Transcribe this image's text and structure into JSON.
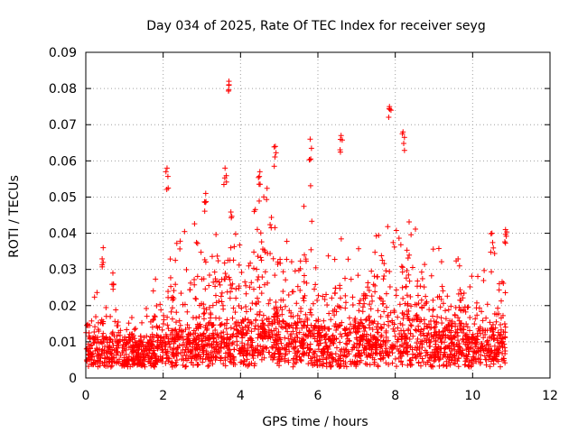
{
  "chart_data": {
    "type": "scatter",
    "title": "Day 034 of 2025, Rate Of TEC Index for receiver seyg",
    "xlabel": "GPS time / hours",
    "ylabel": "ROTI / TECUs",
    "xlim": [
      0,
      12
    ],
    "ylim": [
      0,
      0.09
    ],
    "xticks": [
      "0",
      "2",
      "4",
      "6",
      "8",
      "10",
      "12"
    ],
    "yticks": [
      "0",
      "0.01",
      "0.02",
      "0.03",
      "0.04",
      "0.05",
      "0.06",
      "0.07",
      "0.08",
      "0.09"
    ],
    "grid": true,
    "marker": "+",
    "color": "#ff0000",
    "time_range_hours": [
      0,
      10.85
    ],
    "series": [
      {
        "name": "ROTI",
        "notable_points": [
          {
            "x": 3.7,
            "y": 0.082
          },
          {
            "x": 7.85,
            "y": 0.075
          },
          {
            "x": 8.2,
            "y": 0.068
          },
          {
            "x": 6.6,
            "y": 0.067
          },
          {
            "x": 5.8,
            "y": 0.066
          },
          {
            "x": 4.9,
            "y": 0.064
          },
          {
            "x": 2.1,
            "y": 0.058
          },
          {
            "x": 3.6,
            "y": 0.058
          },
          {
            "x": 4.5,
            "y": 0.057
          },
          {
            "x": 3.1,
            "y": 0.051
          },
          {
            "x": 0.45,
            "y": 0.036
          },
          {
            "x": 0.7,
            "y": 0.029
          },
          {
            "x": 10.85,
            "y": 0.041
          },
          {
            "x": 10.5,
            "y": 0.04
          }
        ],
        "envelope": [
          {
            "x": 0.0,
            "upper": 0.02,
            "base": 0.008
          },
          {
            "x": 0.5,
            "upper": 0.028,
            "base": 0.008
          },
          {
            "x": 1.0,
            "upper": 0.018,
            "base": 0.007
          },
          {
            "x": 1.5,
            "upper": 0.017,
            "base": 0.007
          },
          {
            "x": 2.0,
            "upper": 0.035,
            "base": 0.009
          },
          {
            "x": 2.5,
            "upper": 0.04,
            "base": 0.01
          },
          {
            "x": 3.0,
            "upper": 0.048,
            "base": 0.011
          },
          {
            "x": 3.5,
            "upper": 0.05,
            "base": 0.011
          },
          {
            "x": 4.0,
            "upper": 0.045,
            "base": 0.012
          },
          {
            "x": 4.5,
            "upper": 0.055,
            "base": 0.013
          },
          {
            "x": 5.0,
            "upper": 0.05,
            "base": 0.013
          },
          {
            "x": 5.5,
            "upper": 0.045,
            "base": 0.013
          },
          {
            "x": 5.8,
            "upper": 0.055,
            "base": 0.012
          },
          {
            "x": 6.0,
            "upper": 0.03,
            "base": 0.01
          },
          {
            "x": 6.5,
            "upper": 0.04,
            "base": 0.011
          },
          {
            "x": 7.0,
            "upper": 0.04,
            "base": 0.012
          },
          {
            "x": 7.5,
            "upper": 0.045,
            "base": 0.013
          },
          {
            "x": 8.0,
            "upper": 0.06,
            "base": 0.014
          },
          {
            "x": 8.5,
            "upper": 0.045,
            "base": 0.013
          },
          {
            "x": 9.0,
            "upper": 0.04,
            "base": 0.012
          },
          {
            "x": 9.5,
            "upper": 0.035,
            "base": 0.011
          },
          {
            "x": 10.0,
            "upper": 0.03,
            "base": 0.01
          },
          {
            "x": 10.5,
            "upper": 0.035,
            "base": 0.01
          },
          {
            "x": 10.85,
            "upper": 0.038,
            "base": 0.01
          }
        ]
      }
    ]
  }
}
